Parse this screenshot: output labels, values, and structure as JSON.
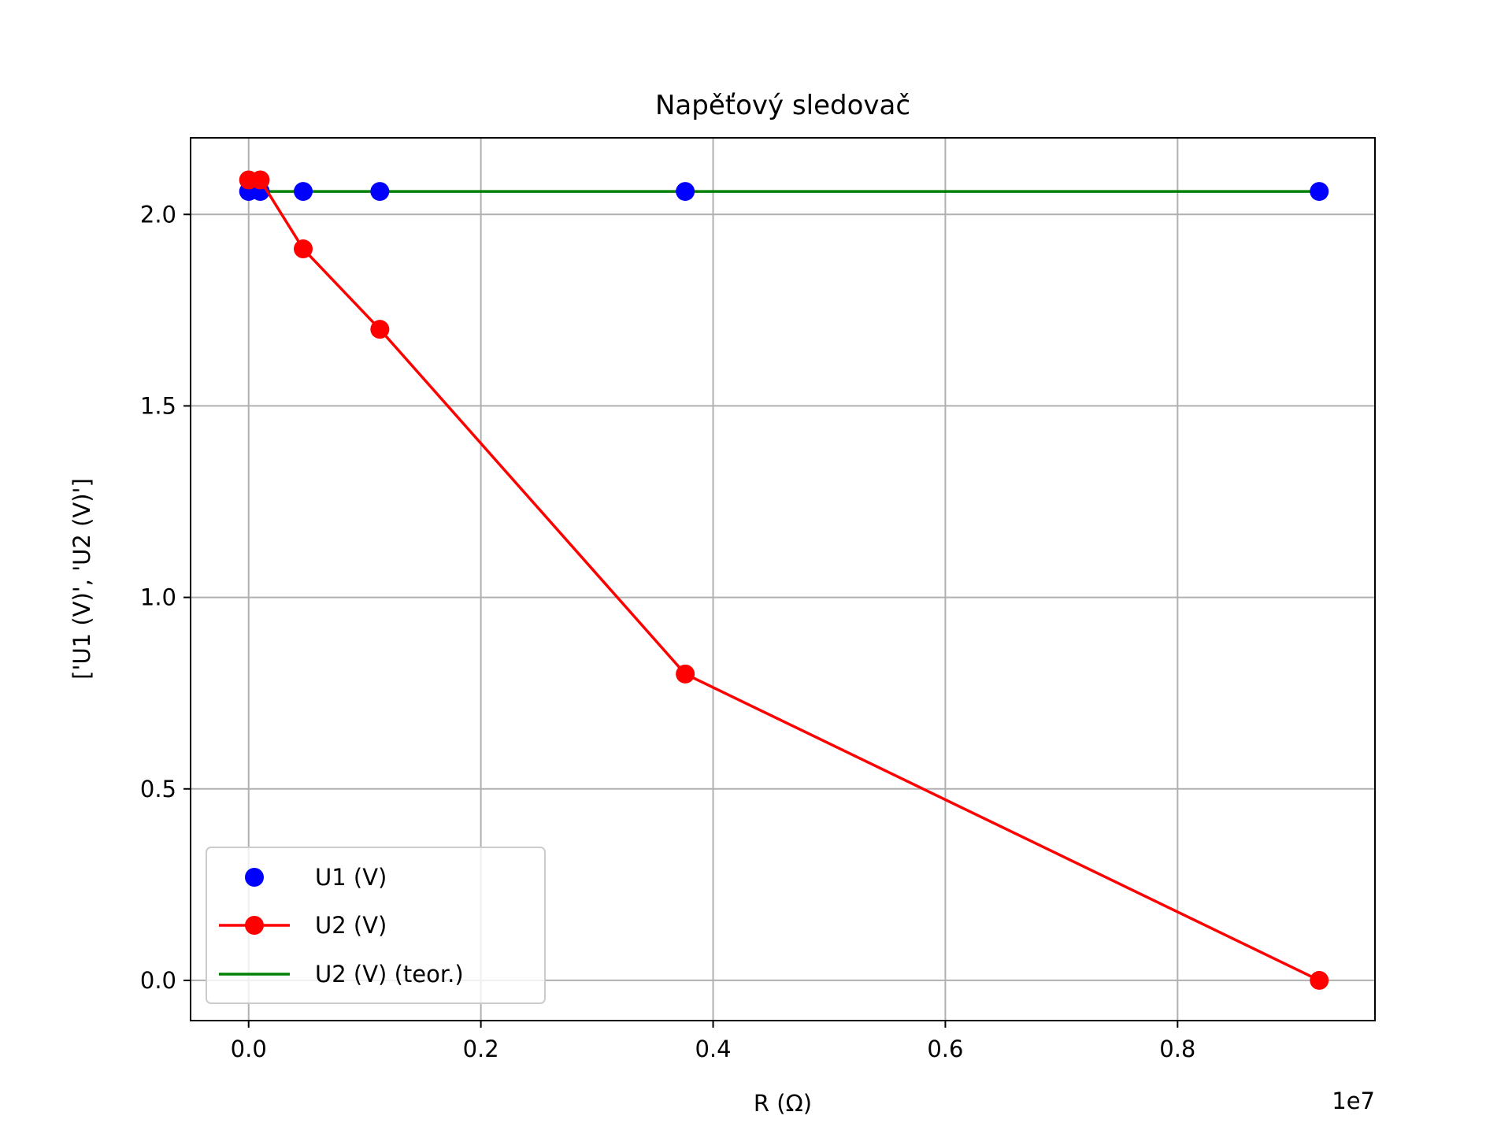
{
  "chart_data": {
    "type": "line",
    "title": "Napěťový sledovač",
    "xlabel": "R (Ω)",
    "ylabel": "['U1 (V)', 'U2 (V)']",
    "x_offset_label": "1e7",
    "xlim": [
      -0.05,
      0.97
    ],
    "ylim": [
      -0.105,
      2.2
    ],
    "x_ticks": [
      0.0,
      0.2,
      0.4,
      0.6,
      0.8
    ],
    "x_tick_labels": [
      "0.0",
      "0.2",
      "0.4",
      "0.6",
      "0.8"
    ],
    "y_ticks": [
      0.0,
      0.5,
      1.0,
      1.5,
      2.0
    ],
    "y_tick_labels": [
      "0.0",
      "0.5",
      "1.0",
      "1.5",
      "2.0"
    ],
    "grid": true,
    "legend_position": "lower-left",
    "series": [
      {
        "name": "U1 (V)",
        "color": "#0000ff",
        "style": "markers",
        "x": [
          0.0,
          0.01,
          0.047,
          0.113,
          0.376,
          0.922
        ],
        "y": [
          2.06,
          2.06,
          2.06,
          2.06,
          2.06,
          2.06
        ]
      },
      {
        "name": "U2 (V)",
        "color": "#ff0000",
        "style": "line-markers",
        "x": [
          0.0,
          0.01,
          0.047,
          0.113,
          0.376,
          0.922
        ],
        "y": [
          2.09,
          2.09,
          1.91,
          1.7,
          0.8,
          0.0
        ]
      },
      {
        "name": "U2 (V) (teor.)",
        "color": "#008000",
        "style": "line",
        "x": [
          0.0,
          0.922
        ],
        "y": [
          2.06,
          2.06
        ]
      }
    ]
  }
}
